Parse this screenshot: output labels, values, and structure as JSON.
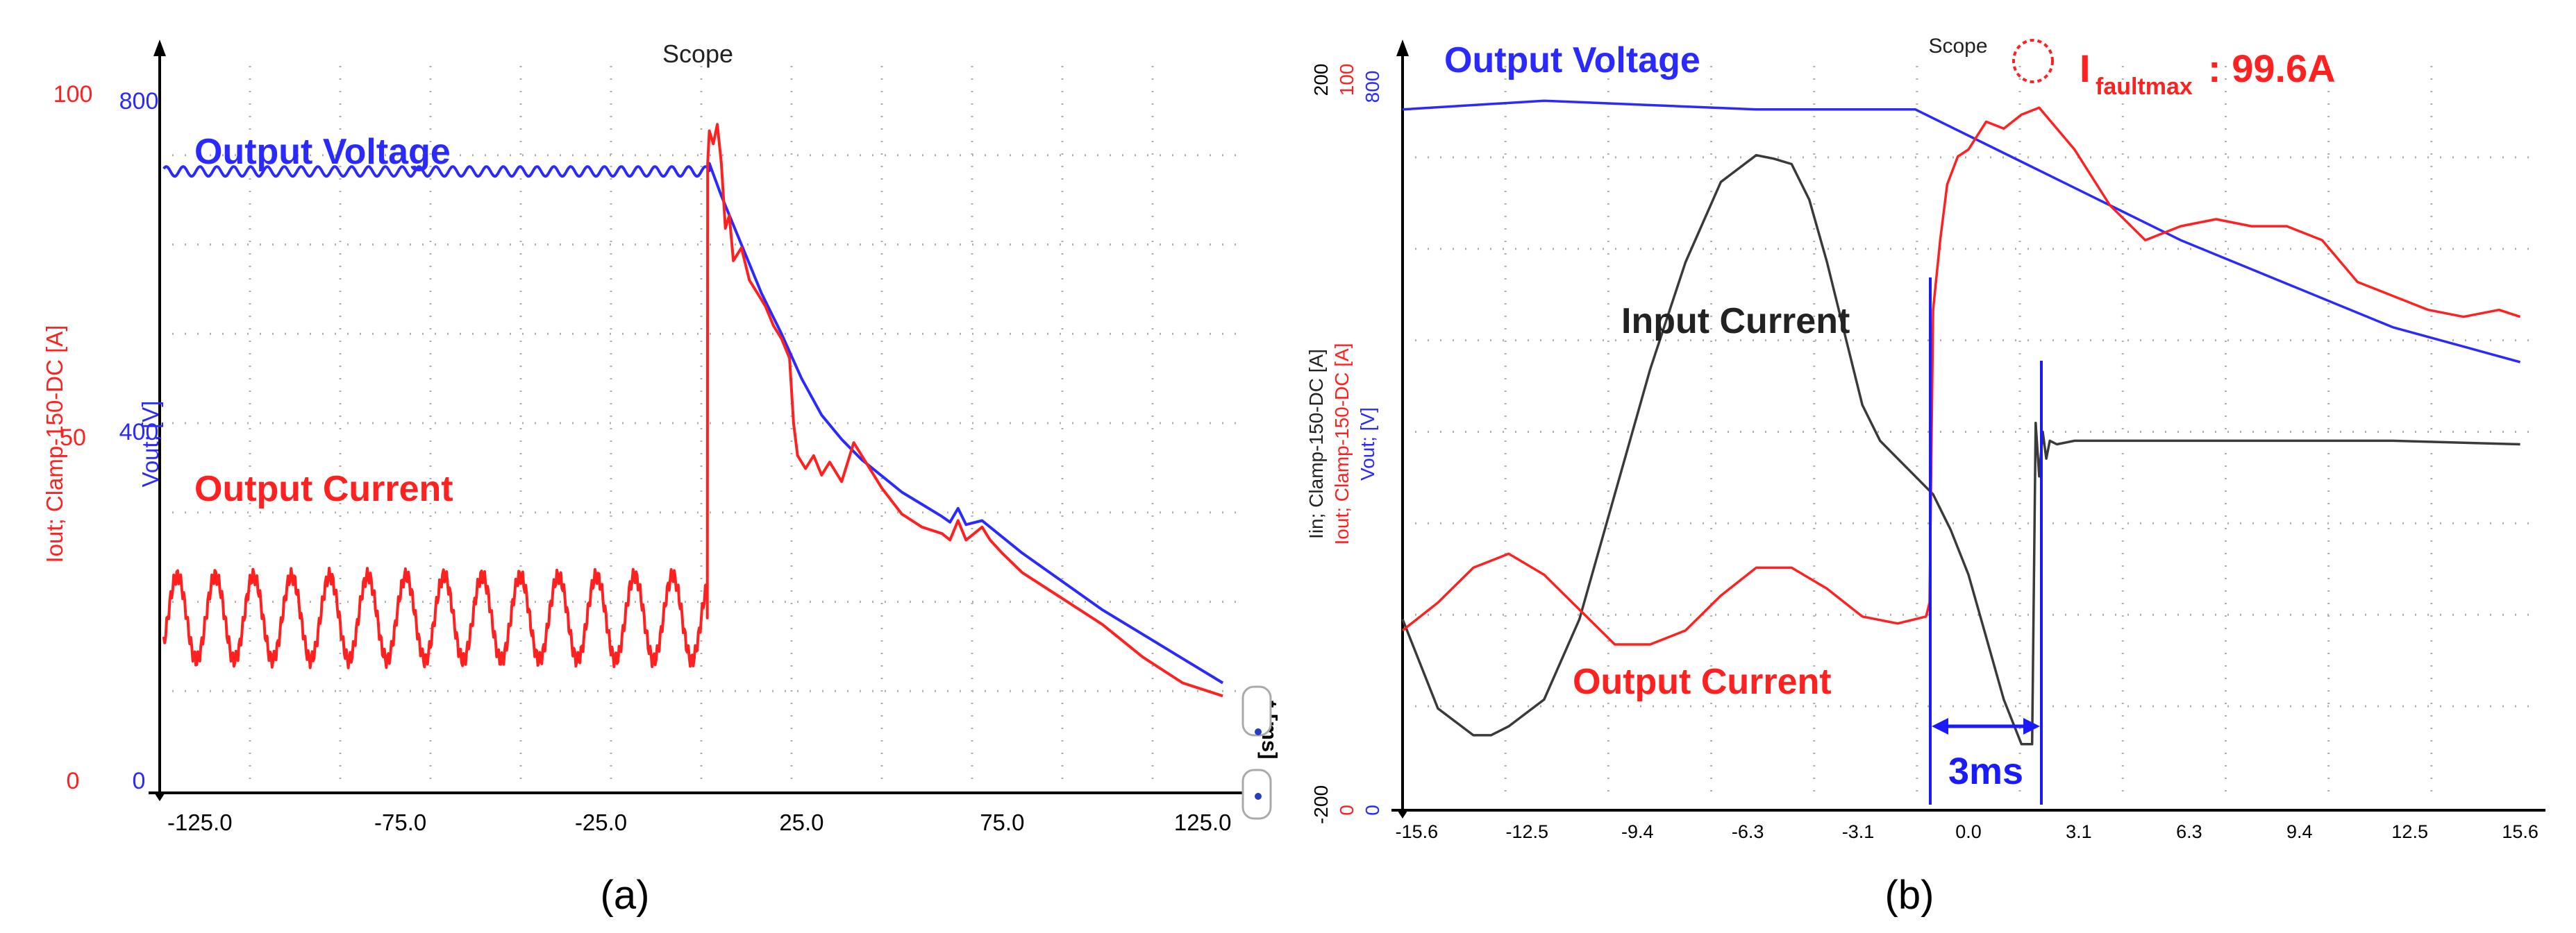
{
  "colors": {
    "voltage": "#2a2aff",
    "output_current": "#ff2020",
    "input_current": "#3a3a3a",
    "grid": "#b0b0b0",
    "axis": "#000000",
    "annotation": "#1a1aff"
  },
  "chart_data": [
    {
      "panel_label": "(a)",
      "type": "line",
      "title": "Scope",
      "xlabel": "t [ms]",
      "ylabel_current": "Iout; Clamp-150-DC [A]",
      "ylabel_voltage": "Vout; [V]",
      "xlim": [
        -135,
        135
      ],
      "current_ticks": [
        "100",
        "50",
        "0"
      ],
      "voltage_ticks": [
        "800",
        "400",
        "0"
      ],
      "x_ticks": [
        "-125.0",
        "-75.0",
        "-25.0",
        "25.0",
        "75.0",
        "125.0"
      ],
      "grid": true,
      "annotations": {
        "voltage_label": "Output Voltage",
        "current_label": "Output Current"
      },
      "series": [
        {
          "name": "Output Voltage",
          "unit": "V",
          "ylim": [
            0,
            880
          ],
          "ripple_until": 2,
          "ripple": {
            "base": 750,
            "amp": 6,
            "period": 4.2
          },
          "x": [
            2,
            5,
            10,
            15,
            20,
            25,
            30,
            35,
            40,
            45,
            50,
            55,
            60,
            62,
            64,
            66,
            70,
            75,
            80,
            90,
            100,
            110,
            120,
            130
          ],
          "y": [
            760,
            720,
            660,
            600,
            550,
            495,
            450,
            420,
            395,
            375,
            355,
            340,
            325,
            318,
            335,
            315,
            320,
            300,
            280,
            245,
            210,
            180,
            150,
            120
          ]
        },
        {
          "name": "Output Current",
          "unit": "A",
          "ylim": [
            0,
            110
          ],
          "ripple_until": 1.5,
          "ripple": {
            "base": 25,
            "amp": 6.5,
            "period": 9.5
          },
          "x": [
            1.5,
            1.6,
            2,
            3,
            4,
            5,
            6,
            7,
            8,
            10,
            12,
            14,
            16,
            18,
            20,
            22,
            23,
            24,
            26,
            28,
            30,
            32,
            35,
            38,
            40,
            42,
            45,
            50,
            55,
            60,
            62,
            64,
            66,
            68,
            70,
            72,
            75,
            80,
            90,
            100,
            110,
            120,
            130
          ],
          "y": [
            25,
            95,
            100,
            98,
            101,
            95,
            85,
            87,
            80,
            82,
            77,
            75,
            73,
            70,
            68,
            65,
            55,
            50,
            48,
            50,
            47,
            49,
            46,
            52,
            50,
            48,
            45,
            41,
            39,
            38,
            37,
            40,
            37,
            38,
            39,
            37,
            35,
            32,
            28,
            24,
            19,
            15,
            13
          ]
        }
      ]
    },
    {
      "panel_label": "(b)",
      "type": "line",
      "title": "Scope",
      "ylabel_input": "Iin; Clamp-150-DC [A]",
      "ylabel_current": "Iout; Clamp-150-DC [A]",
      "ylabel_voltage": "Vout; [V]",
      "xlim": [
        -16,
        16
      ],
      "input_ticks": [
        "200",
        "-200"
      ],
      "current_ticks": [
        "100",
        "0"
      ],
      "voltage_ticks": [
        "800",
        "0"
      ],
      "x_ticks": [
        "-15.6",
        "-12.5",
        "-9.4",
        "-6.3",
        "-3.1",
        "0.0",
        "3.1",
        "6.3",
        "9.4",
        "12.5",
        "15.6"
      ],
      "grid": true,
      "annotations": {
        "voltage_label": "Output Voltage",
        "input_label": "Input Current",
        "current_label": "Output Current",
        "duration_label": "3ms",
        "fault_label_main": "I",
        "fault_label_sub": "faultmax",
        "fault_value": ": 99.6A"
      },
      "series": [
        {
          "name": "Output Voltage",
          "unit": "V",
          "ylim": [
            0,
            840
          ],
          "x": [
            -16,
            -12,
            -9,
            -6,
            -3,
            -1.5,
            0,
            3,
            6,
            9,
            12,
            15.6
          ],
          "y": [
            790,
            800,
            795,
            790,
            790,
            790,
            760,
            700,
            640,
            590,
            540,
            500
          ]
        },
        {
          "name": "Input Current",
          "unit": "A",
          "ylim": [
            -200,
            210
          ],
          "x": [
            -16,
            -15,
            -14,
            -13.5,
            -13,
            -12,
            -11,
            -10,
            -9,
            -8,
            -7,
            -6,
            -5.5,
            -5,
            -4.5,
            -4,
            -3.5,
            -3,
            -2.5,
            -2,
            -1.5,
            -1,
            -0.5,
            0,
            0.5,
            1,
            1.5,
            1.8,
            1.9,
            2,
            2.1,
            2.2,
            2.3,
            2.5,
            3,
            6,
            9,
            12,
            15.6
          ],
          "y": [
            -100,
            -150,
            -165,
            -165,
            -160,
            -145,
            -100,
            -30,
            40,
            100,
            145,
            160,
            158,
            155,
            135,
            100,
            60,
            20,
            0,
            -10,
            -20,
            -30,
            -50,
            -75,
            -110,
            -145,
            -170,
            -170,
            10,
            -20,
            5,
            -10,
            0,
            -2,
            0,
            0,
            0,
            0,
            -2
          ]
        },
        {
          "name": "Output Current",
          "unit": "A",
          "ylim": [
            0,
            105
          ],
          "x": [
            -16,
            -15,
            -14,
            -13,
            -12,
            -11,
            -10,
            -9,
            -8,
            -7,
            -6,
            -5,
            -4,
            -3,
            -2,
            -1.2,
            -1.1,
            -1,
            -0.8,
            -0.6,
            -0.3,
            0,
            0.5,
            1,
            1.5,
            2,
            2.5,
            3,
            4,
            5,
            6,
            7,
            8,
            9,
            10,
            11,
            12,
            13,
            14,
            15,
            15.6
          ],
          "y": [
            24,
            28,
            33,
            35,
            32,
            27,
            22,
            22,
            24,
            29,
            33,
            33,
            30,
            26,
            25,
            26,
            28,
            70,
            80,
            88,
            92,
            93,
            97,
            96,
            98,
            99,
            96,
            93,
            85,
            80,
            82,
            83,
            82,
            82,
            80,
            74,
            72,
            70,
            69,
            70,
            69
          ]
        }
      ]
    }
  ]
}
